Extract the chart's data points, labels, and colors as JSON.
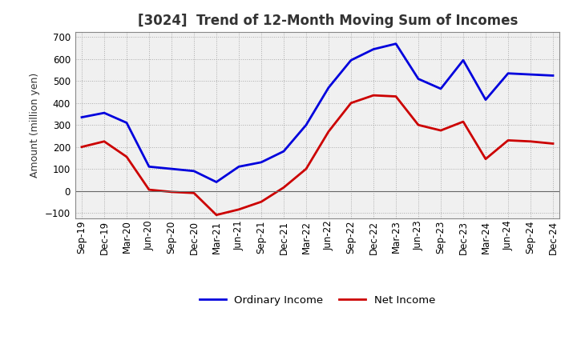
{
  "title": "[3024]  Trend of 12-Month Moving Sum of Incomes",
  "ylabel": "Amount (million yen)",
  "background_color": "#ffffff",
  "plot_bg_color": "#f0f0f0",
  "grid_color": "#999999",
  "title_fontsize": 12,
  "label_fontsize": 9,
  "tick_fontsize": 8.5,
  "x_labels": [
    "Sep-19",
    "Dec-19",
    "Mar-20",
    "Jun-20",
    "Sep-20",
    "Dec-20",
    "Mar-21",
    "Jun-21",
    "Sep-21",
    "Dec-21",
    "Mar-22",
    "Jun-22",
    "Sep-22",
    "Dec-22",
    "Mar-23",
    "Jun-23",
    "Sep-23",
    "Dec-23",
    "Mar-24",
    "Jun-24",
    "Sep-24",
    "Dec-24"
  ],
  "ordinary_income": [
    335,
    355,
    310,
    110,
    100,
    90,
    40,
    110,
    130,
    180,
    300,
    470,
    595,
    645,
    670,
    510,
    465,
    595,
    415,
    535,
    530,
    525
  ],
  "net_income": [
    200,
    225,
    155,
    5,
    -5,
    -10,
    -110,
    -85,
    -50,
    15,
    100,
    270,
    400,
    435,
    430,
    300,
    275,
    315,
    145,
    230,
    225,
    215
  ],
  "ylim": [
    -125,
    725
  ],
  "yticks": [
    -100,
    0,
    100,
    200,
    300,
    400,
    500,
    600,
    700
  ],
  "ordinary_color": "#0000dd",
  "net_color": "#cc0000",
  "line_width": 2.0,
  "legend_fontsize": 9.5
}
